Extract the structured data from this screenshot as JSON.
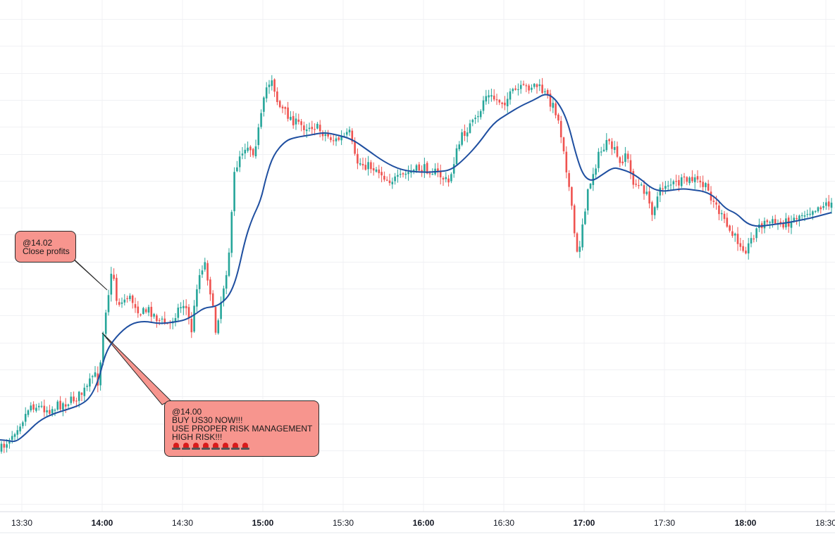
{
  "chart_data": {
    "type": "candlestick",
    "instrument": "US30",
    "timeframe": "1 minute",
    "x_ticks": [
      "13:30",
      "14:00",
      "14:30",
      "15:00",
      "15:30",
      "16:00",
      "16:30",
      "17:00",
      "17:30",
      "18:00",
      "18:30"
    ],
    "bold_ticks": [
      "14:00",
      "15:00",
      "16:00",
      "17:00",
      "18:00"
    ],
    "x_range_minutes": [
      13.5,
      18.7
    ],
    "price_path": [
      [
        0,
        640
      ],
      [
        8,
        630
      ],
      [
        15,
        620
      ],
      [
        25,
        605
      ],
      [
        35,
        592
      ],
      [
        42,
        575
      ],
      [
        55,
        578
      ],
      [
        70,
        582
      ],
      [
        85,
        575
      ],
      [
        100,
        570
      ],
      [
        115,
        560
      ],
      [
        125,
        550
      ],
      [
        133,
        530
      ],
      [
        140,
        545
      ],
      [
        145,
        480
      ],
      [
        150,
        440
      ],
      [
        155,
        410
      ],
      [
        160,
        380
      ],
      [
        165,
        425
      ],
      [
        172,
        432
      ],
      [
        180,
        420
      ],
      [
        190,
        430
      ],
      [
        200,
        445
      ],
      [
        212,
        440
      ],
      [
        225,
        455
      ],
      [
        240,
        462
      ],
      [
        252,
        440
      ],
      [
        262,
        430
      ],
      [
        272,
        470
      ],
      [
        280,
        400
      ],
      [
        290,
        370
      ],
      [
        298,
        410
      ],
      [
        306,
        470
      ],
      [
        315,
        420
      ],
      [
        322,
        380
      ],
      [
        327,
        340
      ],
      [
        332,
        250
      ],
      [
        340,
        220
      ],
      [
        350,
        205
      ],
      [
        360,
        215
      ],
      [
        368,
        180
      ],
      [
        378,
        125
      ],
      [
        386,
        110
      ],
      [
        395,
        150
      ],
      [
        405,
        160
      ],
      [
        420,
        175
      ],
      [
        432,
        180
      ],
      [
        445,
        178
      ],
      [
        460,
        190
      ],
      [
        475,
        200
      ],
      [
        488,
        195
      ],
      [
        496,
        190
      ],
      [
        505,
        230
      ],
      [
        520,
        235
      ],
      [
        535,
        240
      ],
      [
        550,
        255
      ],
      [
        565,
        255
      ],
      [
        580,
        245
      ],
      [
        595,
        240
      ],
      [
        610,
        240
      ],
      [
        625,
        250
      ],
      [
        637,
        260
      ],
      [
        645,
        225
      ],
      [
        655,
        195
      ],
      [
        665,
        180
      ],
      [
        678,
        170
      ],
      [
        688,
        135
      ],
      [
        700,
        140
      ],
      [
        715,
        145
      ],
      [
        730,
        130
      ],
      [
        745,
        125
      ],
      [
        760,
        120
      ],
      [
        775,
        135
      ],
      [
        790,
        160
      ],
      [
        800,
        210
      ],
      [
        808,
        270
      ],
      [
        815,
        330
      ],
      [
        820,
        370
      ],
      [
        826,
        320
      ],
      [
        833,
        280
      ],
      [
        840,
        250
      ],
      [
        850,
        220
      ],
      [
        860,
        205
      ],
      [
        870,
        210
      ],
      [
        880,
        235
      ],
      [
        888,
        215
      ],
      [
        897,
        255
      ],
      [
        905,
        265
      ],
      [
        915,
        270
      ],
      [
        925,
        300
      ],
      [
        935,
        275
      ],
      [
        945,
        260
      ],
      [
        958,
        262
      ],
      [
        970,
        258
      ],
      [
        985,
        255
      ],
      [
        1000,
        265
      ],
      [
        1010,
        280
      ],
      [
        1020,
        300
      ],
      [
        1030,
        320
      ],
      [
        1040,
        335
      ],
      [
        1050,
        345
      ],
      [
        1060,
        355
      ],
      [
        1068,
        335
      ],
      [
        1078,
        320
      ],
      [
        1090,
        315
      ],
      [
        1105,
        318
      ],
      [
        1120,
        315
      ],
      [
        1135,
        305
      ],
      [
        1150,
        298
      ],
      [
        1165,
        292
      ],
      [
        1180,
        288
      ]
    ],
    "ma_path": [
      [
        0,
        625
      ],
      [
        12,
        626
      ],
      [
        22,
        628
      ],
      [
        35,
        618
      ],
      [
        55,
        598
      ],
      [
        75,
        588
      ],
      [
        95,
        582
      ],
      [
        115,
        575
      ],
      [
        128,
        565
      ],
      [
        140,
        540
      ],
      [
        150,
        500
      ],
      [
        165,
        478
      ],
      [
        185,
        460
      ],
      [
        205,
        456
      ],
      [
        225,
        460
      ],
      [
        245,
        458
      ],
      [
        262,
        455
      ],
      [
        275,
        448
      ],
      [
        290,
        437
      ],
      [
        305,
        436
      ],
      [
        318,
        428
      ],
      [
        328,
        415
      ],
      [
        337,
        390
      ],
      [
        348,
        340
      ],
      [
        358,
        310
      ],
      [
        370,
        285
      ],
      [
        378,
        250
      ],
      [
        388,
        220
      ],
      [
        405,
        200
      ],
      [
        420,
        195
      ],
      [
        440,
        192
      ],
      [
        460,
        188
      ],
      [
        480,
        192
      ],
      [
        500,
        198
      ],
      [
        520,
        212
      ],
      [
        545,
        230
      ],
      [
        570,
        242
      ],
      [
        600,
        245
      ],
      [
        620,
        244
      ],
      [
        640,
        242
      ],
      [
        660,
        225
      ],
      [
        680,
        203
      ],
      [
        700,
        175
      ],
      [
        720,
        162
      ],
      [
        740,
        150
      ],
      [
        758,
        142
      ],
      [
        775,
        132
      ],
      [
        790,
        142
      ],
      [
        805,
        170
      ],
      [
        818,
        222
      ],
      [
        828,
        250
      ],
      [
        840,
        258
      ],
      [
        855,
        248
      ],
      [
        870,
        238
      ],
      [
        880,
        240
      ],
      [
        895,
        245
      ],
      [
        910,
        255
      ],
      [
        925,
        268
      ],
      [
        940,
        272
      ],
      [
        955,
        270
      ],
      [
        970,
        268
      ],
      [
        985,
        270
      ],
      [
        1000,
        272
      ],
      [
        1015,
        280
      ],
      [
        1030,
        297
      ],
      [
        1045,
        303
      ],
      [
        1060,
        318
      ],
      [
        1075,
        322
      ],
      [
        1090,
        320
      ],
      [
        1105,
        318
      ],
      [
        1120,
        316
      ],
      [
        1135,
        313
      ],
      [
        1150,
        310
      ],
      [
        1165,
        306
      ],
      [
        1180,
        302
      ]
    ],
    "ma_color": "#1f4fa0",
    "up_color": "#26a69a",
    "down_color": "#ef5350",
    "grid": true,
    "annotations": [
      {
        "id": "close",
        "lines": [
          "@14.02",
          "Close profits"
        ],
        "anchor_time": "14:02",
        "fill": "#f7958e"
      },
      {
        "id": "buy",
        "lines": [
          "@14.00",
          "BUY US30 NOW!!!",
          "USE PROPER RISK MANAGEMENT",
          "HIGH RISK!!!"
        ],
        "emoji_count": 8,
        "emoji": "bell",
        "anchor_time": "14:00",
        "fill": "#f7958e"
      }
    ]
  }
}
